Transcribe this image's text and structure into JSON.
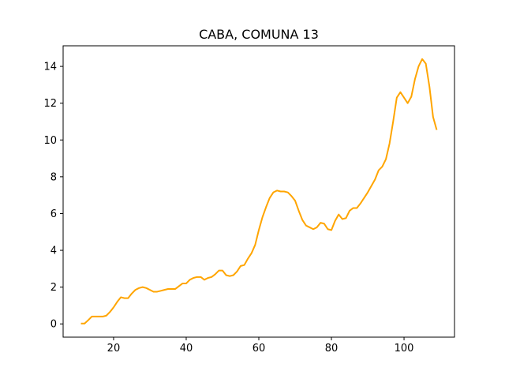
{
  "chart_data": {
    "type": "line",
    "title": "CABA, COMUNA 13",
    "xlabel": "",
    "ylabel": "",
    "xlim": [
      6.1,
      113.9
    ],
    "ylim": [
      -0.72,
      15.12
    ],
    "xticks": [
      20,
      40,
      60,
      80,
      100
    ],
    "yticks": [
      0,
      2,
      4,
      6,
      8,
      10,
      12,
      14
    ],
    "grid": false,
    "series": [
      {
        "color": "#FFA500",
        "x": [
          11,
          12,
          13,
          14,
          15,
          16,
          17,
          18,
          19,
          20,
          21,
          22,
          23,
          24,
          25,
          26,
          27,
          28,
          29,
          30,
          31,
          32,
          33,
          34,
          35,
          36,
          37,
          38,
          39,
          40,
          41,
          42,
          43,
          44,
          45,
          46,
          47,
          48,
          49,
          50,
          51,
          52,
          53,
          54,
          55,
          56,
          57,
          58,
          59,
          60,
          61,
          62,
          63,
          64,
          65,
          66,
          67,
          68,
          69,
          70,
          71,
          72,
          73,
          74,
          75,
          76,
          77,
          78,
          79,
          80,
          81,
          82,
          83,
          84,
          85,
          86,
          87,
          88,
          89,
          90,
          91,
          92,
          93,
          94,
          95,
          96,
          97,
          98,
          99,
          100,
          101,
          102,
          103,
          104,
          105,
          106,
          107,
          108,
          109
        ],
        "y": [
          0.02,
          0.02,
          0.2,
          0.4,
          0.4,
          0.4,
          0.4,
          0.45,
          0.65,
          0.9,
          1.2,
          1.45,
          1.4,
          1.4,
          1.65,
          1.85,
          1.95,
          2.0,
          1.95,
          1.85,
          1.75,
          1.75,
          1.8,
          1.85,
          1.9,
          1.9,
          1.9,
          2.05,
          2.2,
          2.2,
          2.4,
          2.5,
          2.55,
          2.55,
          2.4,
          2.5,
          2.55,
          2.7,
          2.9,
          2.9,
          2.65,
          2.6,
          2.65,
          2.85,
          3.15,
          3.2,
          3.55,
          3.85,
          4.3,
          5.1,
          5.8,
          6.35,
          6.85,
          7.15,
          7.25,
          7.2,
          7.2,
          7.15,
          6.95,
          6.7,
          6.15,
          5.65,
          5.35,
          5.25,
          5.15,
          5.25,
          5.5,
          5.45,
          5.15,
          5.1,
          5.6,
          5.95,
          5.7,
          5.75,
          6.15,
          6.3,
          6.3,
          6.55,
          6.85,
          7.15,
          7.5,
          7.85,
          8.35,
          8.55,
          8.95,
          9.8,
          11.0,
          12.3,
          12.6,
          12.3,
          12.0,
          12.35,
          13.3,
          14.0,
          14.4,
          14.15,
          12.9,
          11.25,
          10.55
        ]
      }
    ]
  }
}
